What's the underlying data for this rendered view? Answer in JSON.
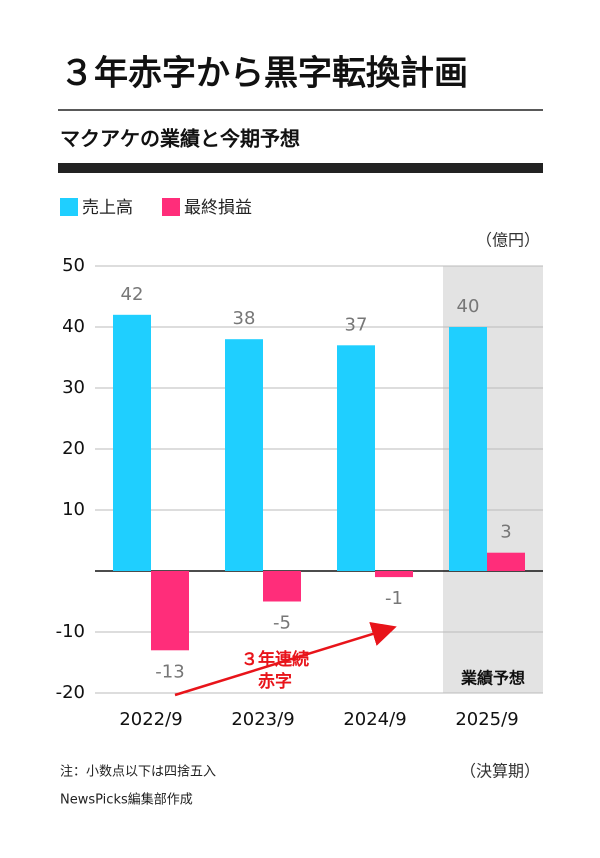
{
  "chart_data": {
    "type": "bar",
    "title": "３年赤字から黒字転換計画",
    "subtitle": "マクアケの業績と今期予想",
    "unit": "（億円）",
    "categories": [
      "2022/9",
      "2023/9",
      "2024/9",
      "2025/9"
    ],
    "series": [
      {
        "name": "売上高",
        "color": "#1fcfff",
        "values": [
          42,
          38,
          37,
          40
        ]
      },
      {
        "name": "最終損益",
        "color": "#ff2d7a",
        "values": [
          -13,
          -5,
          -1,
          3
        ]
      }
    ],
    "ylim": [
      -20,
      50
    ],
    "yticks": [
      -20,
      -10,
      10,
      20,
      30,
      40,
      50
    ],
    "grid": true,
    "x_axis_label": "（決算期）",
    "forecast_label": "業績予想",
    "annotation": [
      "３年連続",
      "赤字"
    ],
    "note": "注：小数点以下は四捨五入",
    "source": "NewsPicks編集部作成"
  }
}
